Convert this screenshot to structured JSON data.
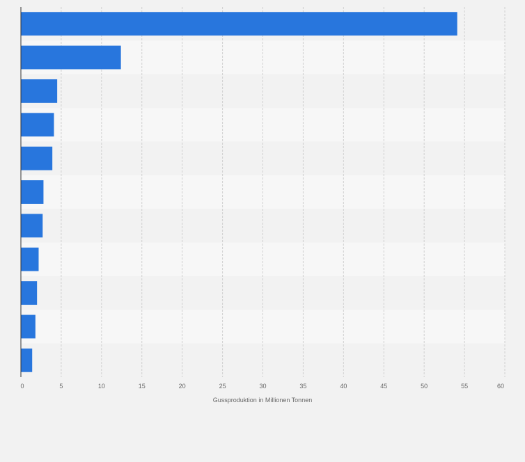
{
  "chart_data": {
    "type": "bar",
    "orientation": "horizontal",
    "title": "",
    "xlabel": "Gussproduktion in Millionen Tonnen",
    "ylabel": "",
    "categories": [
      "",
      "",
      "",
      "",
      "",
      "",
      "",
      "",
      "",
      "",
      ""
    ],
    "values": [
      54.1,
      12.4,
      4.5,
      4.1,
      3.9,
      2.8,
      2.7,
      2.2,
      2.0,
      1.8,
      1.4
    ],
    "xlim": [
      0,
      60
    ],
    "xticks": [
      "0",
      "5",
      "10",
      "15",
      "20",
      "25",
      "30",
      "35",
      "40",
      "45",
      "50",
      "55",
      "60"
    ],
    "grid": true,
    "legend": "none",
    "colors": {
      "bar": "#2876dd",
      "band_light": "#f7f7f7",
      "band_dark": "#f2f2f2",
      "grid": "#d0d0d0",
      "axis": "#333333",
      "tick_text": "#666666"
    }
  }
}
